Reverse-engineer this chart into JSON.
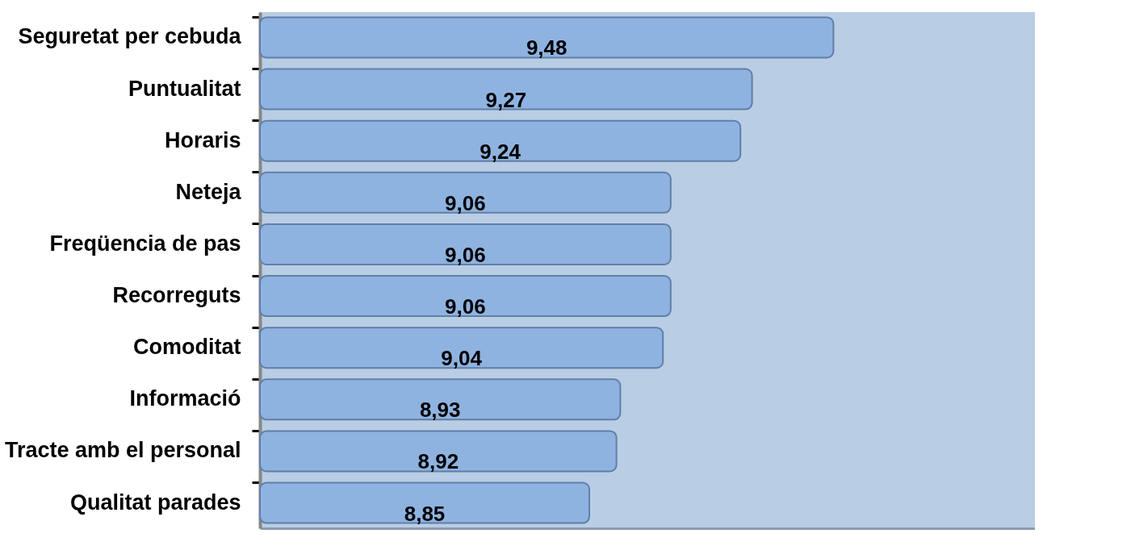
{
  "chart_data": {
    "type": "bar",
    "orientation": "horizontal",
    "categories": [
      "Seguretat per cebuda",
      "Puntualitat",
      "Horaris",
      "Neteja",
      "Freqüencia de pas",
      "Recorreguts",
      "Comoditat",
      "Informació",
      "Tracte amb el personal",
      "Qualitat parades"
    ],
    "values": [
      9.48,
      9.27,
      9.24,
      9.06,
      9.06,
      9.06,
      9.04,
      8.93,
      8.92,
      8.85
    ],
    "value_labels": [
      "9,48",
      "9,27",
      "9,24",
      "9,06",
      "9,06",
      "9,06",
      "9,04",
      "8,93",
      "8,92",
      "8,85"
    ],
    "color": "#8fb3e0",
    "xlim": [
      8,
      10
    ],
    "tick_labels": "y"
  }
}
